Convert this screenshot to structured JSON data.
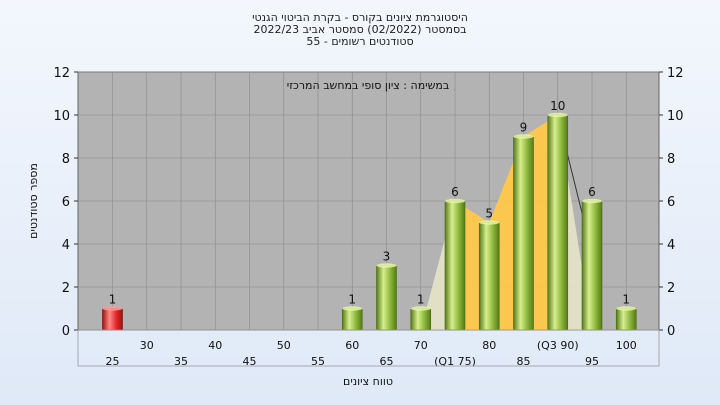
{
  "chart_data": {
    "type": "bar",
    "title_lines": [
      "היסטוגרמת ציונים בקורס - בקרת הביטוי הגנטי",
      "בסמסטר  (02/2022)  סמסטר אביב 2022/23",
      "סטודנטים רשומים - 55"
    ],
    "annotation": "במשימה : ציון סופי במחשב המרכזי",
    "xlabel": "טווח ציונים",
    "ylabel": "מספר סטודנטים",
    "ylim": [
      0,
      12
    ],
    "yticks": [
      0,
      2,
      4,
      6,
      8,
      10,
      12
    ],
    "categories": [
      "25",
      "30",
      "35",
      "40",
      "45",
      "50",
      "55",
      "60",
      "65",
      "70",
      "(Q1 75)",
      "80",
      "85",
      "(Q3 90)",
      "95",
      "100"
    ],
    "values": [
      1,
      0,
      0,
      0,
      0,
      0,
      0,
      1,
      3,
      1,
      6,
      5,
      9,
      10,
      6,
      1
    ],
    "highlight_category": "25",
    "quartile_band": {
      "from": "(Q1 75)",
      "to": "(Q3 90)"
    },
    "colors": {
      "bar": "#8ab53a",
      "bar_light": "#d7ef8e",
      "bar_dark": "#557a18",
      "highlight": "#e0262a",
      "highlight_light": "#ff8a84",
      "band": "#ffc84a",
      "band_light": "#e6e4c8",
      "plot_bg": "#b3b3b3",
      "grid": "#8a8a8a"
    }
  }
}
